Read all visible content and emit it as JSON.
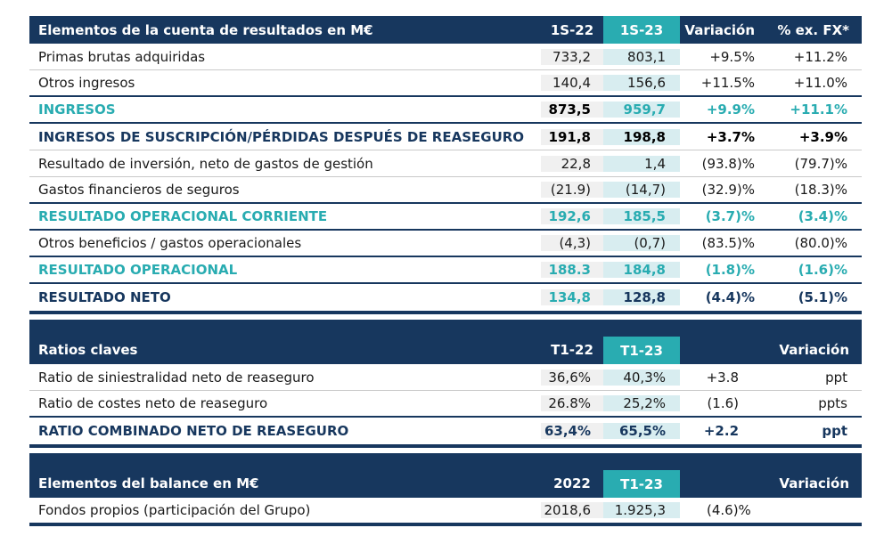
{
  "colors": {
    "header_navy": "#17375e",
    "highlight_teal": "#29acb1",
    "column_teal_light": "#d8edf0",
    "column_gray_light": "#f0f0f0",
    "separator_gray": "#c9c9c9"
  },
  "tables": [
    {
      "title": "Elementos de la cuenta de resultados en  M€",
      "columns": [
        "1S-22",
        "1S-23",
        "Variación",
        "% ex. FX*"
      ],
      "rows": [
        {
          "label": "Primas brutas adquiridas",
          "values": [
            "733,2",
            "803,1",
            "+9.5%",
            "+11.2%"
          ]
        },
        {
          "label": "Otros ingresos",
          "values": [
            "140,4",
            "156,6",
            "+11.5%",
            "+11.0%"
          ]
        },
        {
          "label": "INGRESOS",
          "values": [
            "873,5",
            "959,7",
            "+9.9%",
            "+11.1%"
          ]
        },
        {
          "label": "INGRESOS DE SUSCRIPCIÓN/PÉRDIDAS DESPUÉS DE REASEGURO",
          "values": [
            "191,8",
            "198,8",
            "+3.7%",
            "+3.9%"
          ]
        },
        {
          "label": "Resultado de inversión, neto de gastos de gestión",
          "values": [
            "22,8",
            "1,4",
            "(93.8)%",
            "(79.7)%"
          ]
        },
        {
          "label": "Gastos financieros de seguros",
          "values": [
            "(21.9)",
            "(14,7)",
            "(32.9)%",
            "(18.3)%"
          ]
        },
        {
          "label": "RESULTADO OPERACIONAL CORRIENTE",
          "values": [
            "192,6",
            "185,5",
            "(3.7)%",
            "(3.4)%"
          ]
        },
        {
          "label": "Otros beneficios / gastos operacionales",
          "values": [
            "(4,3)",
            "(0,7)",
            "(83.5)%",
            "(80.0)%"
          ]
        },
        {
          "label": "RESULTADO OPERACIONAL",
          "values": [
            "188.3",
            "184,8",
            "(1.8)%",
            "(1.6)%"
          ]
        },
        {
          "label": "RESULTADO NETO",
          "values": [
            "134,8",
            "128,8",
            "(4.4)%",
            "(5.1)%"
          ]
        }
      ]
    },
    {
      "title": "Ratios claves",
      "columns": [
        "T1-22",
        "T1-23",
        "Variación"
      ],
      "rows": [
        {
          "label": "Ratio de siniestralidad neto de reaseguro",
          "values": [
            "36,6%",
            "40,3%",
            "+3.8",
            "ppt"
          ]
        },
        {
          "label": "Ratio de costes neto de reaseguro",
          "values": [
            "26.8%",
            "25,2%",
            "(1.6)",
            "ppts"
          ]
        },
        {
          "label": "RATIO COMBINADO NETO DE REASEGURO",
          "values": [
            "63,4%",
            "65,5%",
            "+2.2",
            "ppt"
          ]
        }
      ]
    },
    {
      "title": "Elementos del balance en M€",
      "columns": [
        "2022",
        "T1-23",
        "Variación"
      ],
      "rows": [
        {
          "label": "Fondos propios (participación del Grupo)",
          "values": [
            "2018,6",
            "1.925,3",
            "(4.6)%"
          ]
        }
      ]
    }
  ]
}
